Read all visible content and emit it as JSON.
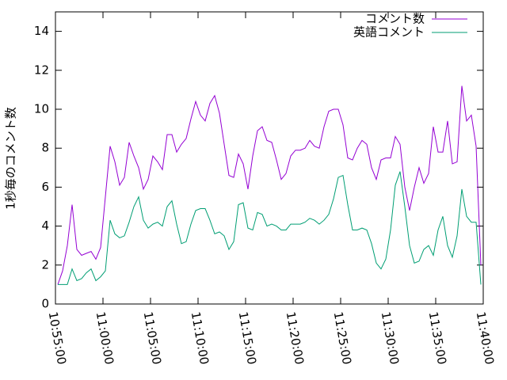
{
  "chart_data": {
    "type": "line",
    "y_label": "1秒毎のコメント数",
    "x": [
      "10:55:15",
      "10:55:45",
      "10:56:15",
      "10:56:45",
      "10:57:15",
      "10:57:45",
      "10:58:15",
      "10:58:45",
      "10:59:15",
      "10:59:45",
      "11:00:15",
      "11:00:45",
      "11:01:15",
      "11:01:45",
      "11:02:15",
      "11:02:45",
      "11:03:15",
      "11:03:45",
      "11:04:15",
      "11:04:45",
      "11:05:15",
      "11:05:45",
      "11:06:15",
      "11:06:45",
      "11:07:15",
      "11:07:45",
      "11:08:15",
      "11:08:45",
      "11:09:15",
      "11:09:45",
      "11:10:15",
      "11:10:45",
      "11:11:15",
      "11:11:45",
      "11:12:15",
      "11:12:45",
      "11:13:15",
      "11:13:45",
      "11:14:15",
      "11:14:45",
      "11:15:15",
      "11:15:45",
      "11:16:15",
      "11:16:45",
      "11:17:15",
      "11:17:45",
      "11:18:15",
      "11:18:45",
      "11:19:15",
      "11:19:45",
      "11:20:15",
      "11:20:45",
      "11:21:15",
      "11:21:45",
      "11:22:15",
      "11:22:45",
      "11:23:15",
      "11:23:45",
      "11:24:15",
      "11:24:45",
      "11:25:15",
      "11:25:45",
      "11:26:15",
      "11:26:45",
      "11:27:15",
      "11:27:45",
      "11:28:15",
      "11:28:45",
      "11:29:15",
      "11:29:45",
      "11:30:15",
      "11:30:45",
      "11:31:15",
      "11:31:45",
      "11:32:15",
      "11:32:45",
      "11:33:15",
      "11:33:45",
      "11:34:15",
      "11:34:45",
      "11:35:15",
      "11:35:45",
      "11:36:15",
      "11:36:45",
      "11:37:15",
      "11:37:45",
      "11:38:15",
      "11:38:45",
      "11:39:15",
      "11:39:45"
    ],
    "series": [
      {
        "name": "コメント数",
        "color": "#9400d3",
        "values": [
          1.0,
          1.7,
          3.0,
          5.1,
          2.8,
          2.5,
          2.6,
          2.7,
          2.3,
          2.9,
          5.5,
          8.1,
          7.3,
          6.1,
          6.5,
          8.3,
          7.6,
          7.0,
          5.9,
          6.4,
          7.6,
          7.3,
          6.9,
          8.7,
          8.7,
          7.8,
          8.2,
          8.5,
          9.5,
          10.4,
          9.7,
          9.4,
          10.3,
          10.7,
          9.8,
          8.2,
          6.6,
          6.5,
          7.7,
          7.2,
          5.9,
          7.6,
          8.9,
          9.1,
          8.4,
          8.3,
          7.4,
          6.4,
          6.7,
          7.6,
          7.9,
          7.9,
          8.0,
          8.4,
          8.1,
          8.0,
          9.1,
          9.9,
          10.0,
          10.0,
          9.2,
          7.5,
          7.4,
          8.0,
          8.4,
          8.2,
          7.0,
          6.4,
          7.4,
          7.5,
          7.5,
          8.6,
          8.2,
          6.0,
          4.8,
          6.0,
          7.0,
          6.2,
          6.7,
          9.1,
          7.8,
          7.8,
          9.4,
          7.2,
          7.3,
          11.2,
          9.4,
          9.7,
          8.1,
          2.0
        ]
      },
      {
        "name": "英語コメント",
        "color": "#009e73",
        "values": [
          1.0,
          1.0,
          1.0,
          1.8,
          1.2,
          1.3,
          1.6,
          1.8,
          1.2,
          1.4,
          1.7,
          4.3,
          3.6,
          3.4,
          3.5,
          4.2,
          5.0,
          5.5,
          4.3,
          3.9,
          4.1,
          4.2,
          4.0,
          5.0,
          5.3,
          4.1,
          3.1,
          3.2,
          4.1,
          4.8,
          4.9,
          4.9,
          4.3,
          3.6,
          3.7,
          3.5,
          2.8,
          3.2,
          5.1,
          5.2,
          3.9,
          3.8,
          4.7,
          4.6,
          4.0,
          4.1,
          4.0,
          3.8,
          3.8,
          4.1,
          4.1,
          4.1,
          4.2,
          4.4,
          4.3,
          4.1,
          4.3,
          4.6,
          5.4,
          6.5,
          6.6,
          5.1,
          3.8,
          3.8,
          3.9,
          3.8,
          3.1,
          2.1,
          1.8,
          2.3,
          3.8,
          6.1,
          6.8,
          5.0,
          3.0,
          2.1,
          2.2,
          2.8,
          3.0,
          2.5,
          3.8,
          4.5,
          3.0,
          2.4,
          3.5,
          5.9,
          4.5,
          4.2,
          4.2,
          1.0
        ]
      }
    ],
    "xlim": [
      "10:55:00",
      "11:40:00"
    ],
    "xticks": [
      "10:55:00",
      "11:00:00",
      "11:05:00",
      "11:10:00",
      "11:15:00",
      "11:20:00",
      "11:25:00",
      "11:30:00",
      "11:35:00",
      "11:40:00"
    ],
    "ylim": [
      0,
      15
    ],
    "yticks": [
      0,
      2,
      4,
      6,
      8,
      10,
      12,
      14
    ],
    "legend": "top-right"
  }
}
